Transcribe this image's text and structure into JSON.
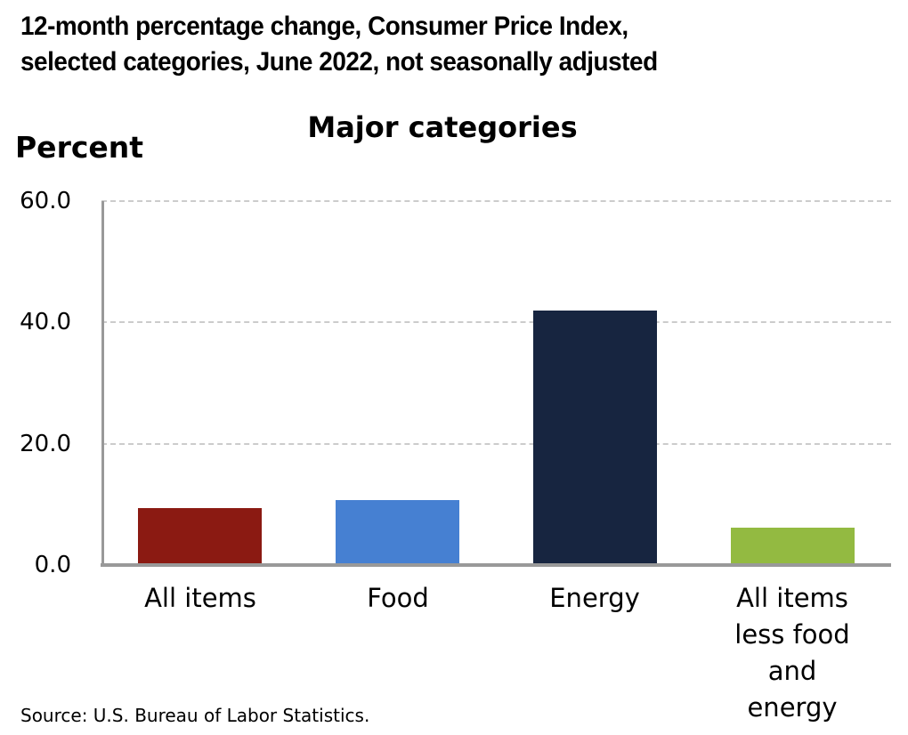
{
  "header": {
    "title_line1": "12-month percentage change, Consumer Price Index,",
    "title_line2": "selected categories, June 2022, not seasonally adjusted"
  },
  "source": "Source: U.S. Bureau of Labor Statistics.",
  "chart_data": {
    "type": "bar",
    "title": "Major categories",
    "ylabel": "Percent",
    "xlabel": "",
    "categories": [
      "All items",
      "Food",
      "Energy",
      "All items\nless food\nand energy"
    ],
    "values": [
      9.1,
      10.4,
      41.6,
      5.9
    ],
    "bar_colors": [
      "#8b1a12",
      "#4680d2",
      "#172540",
      "#93ba41"
    ],
    "ylim": [
      0,
      60
    ],
    "yticks": [
      0.0,
      20.0,
      40.0,
      60.0
    ],
    "ytick_labels": [
      "0.0",
      "20.0",
      "40.0",
      "60.0"
    ],
    "grid": "horizontal dashed gridlines at 20, 40, 60; solid gray x and y axis lines",
    "legend": "none",
    "axis_color": "#999999",
    "gridline_color": "#cccccc"
  }
}
